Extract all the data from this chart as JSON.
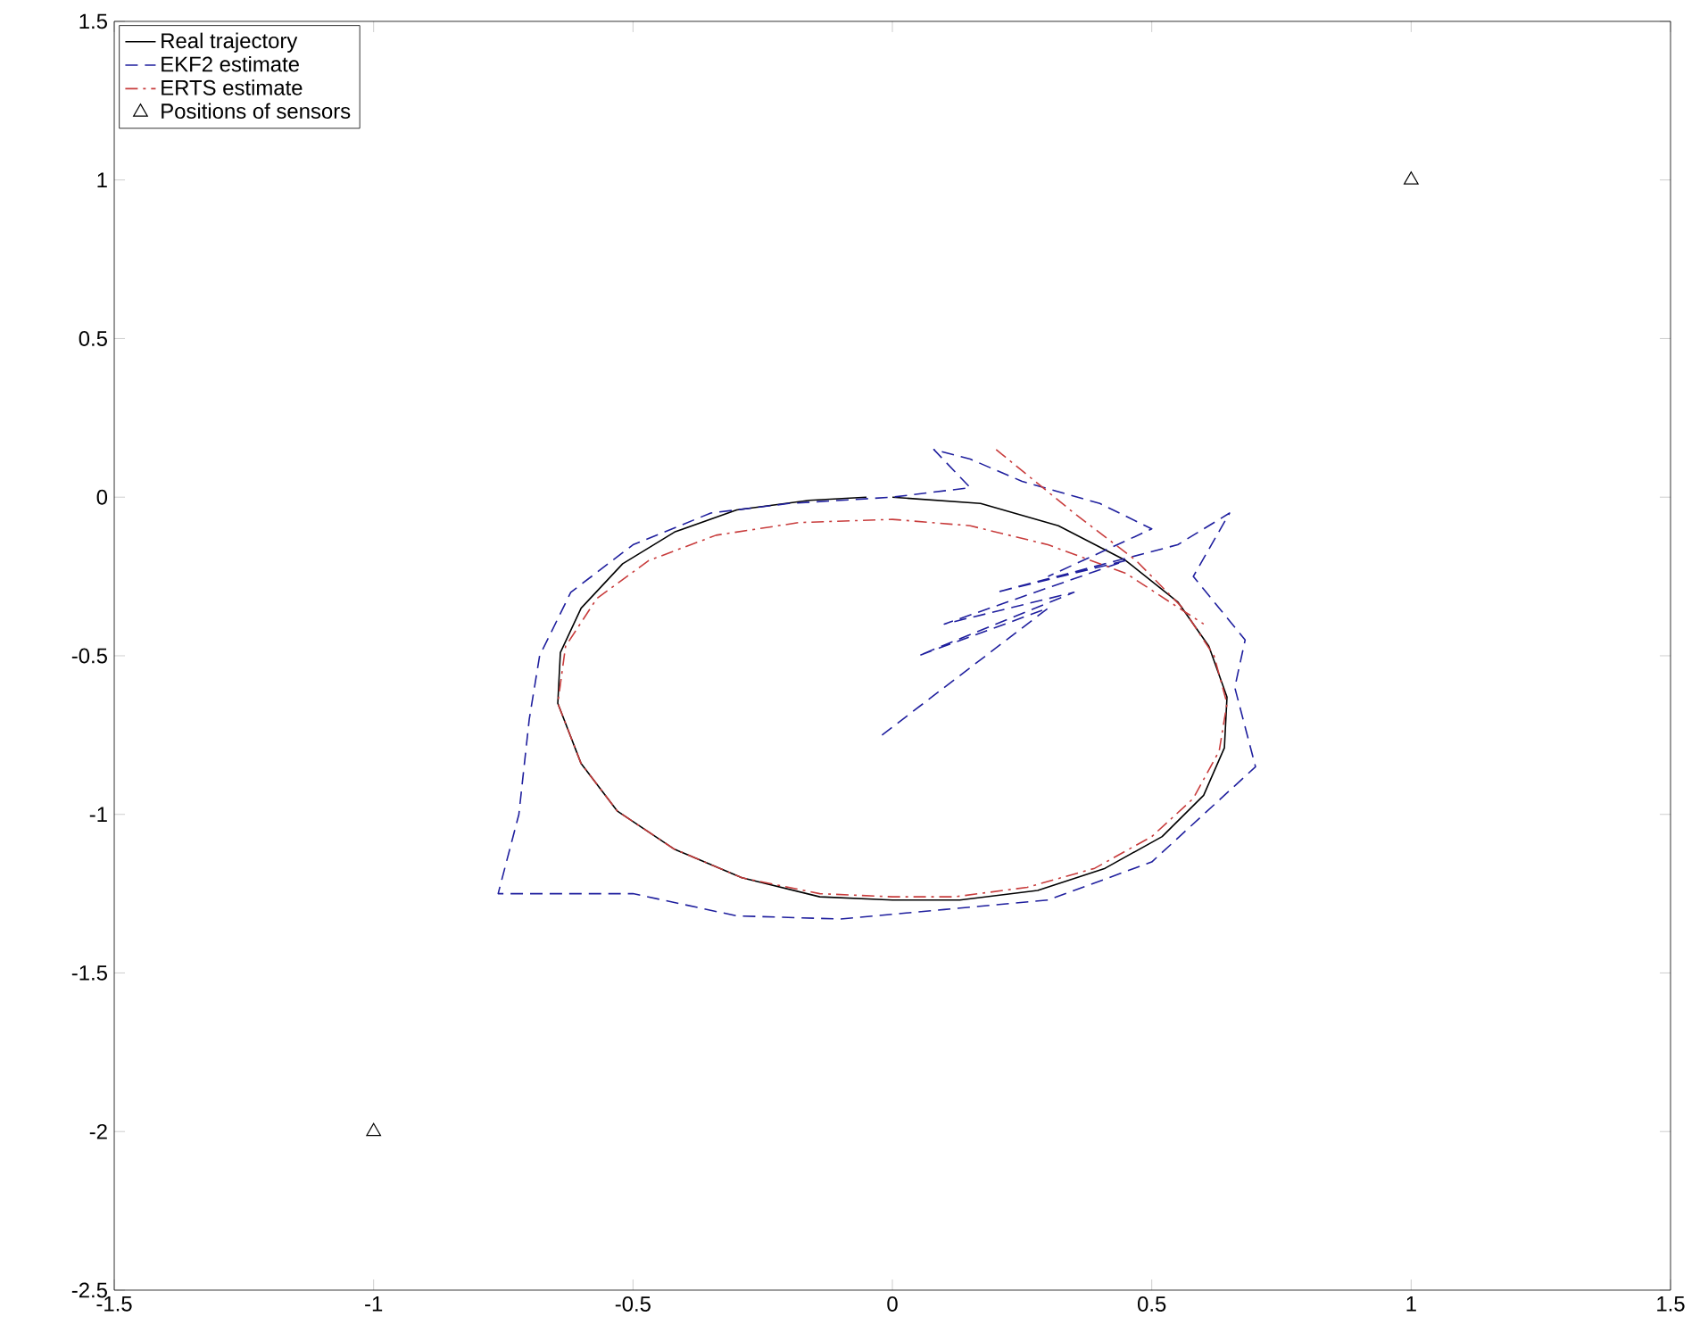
{
  "chart_data": {
    "type": "line",
    "xlim": [
      -1.5,
      1.5
    ],
    "ylim": [
      -2.5,
      1.5
    ],
    "xticks": [
      -1.5,
      -1,
      -0.5,
      0,
      0.5,
      1,
      1.5
    ],
    "yticks": [
      -2.5,
      -2,
      -1.5,
      -1,
      -0.5,
      0,
      0.5,
      1,
      1.5
    ],
    "grid": false,
    "legend": "top left",
    "series": [
      {
        "name": "Real trajectory",
        "color": "#000000",
        "line_style": "solid",
        "x": [
          0,
          0.17,
          0.32,
          0.45,
          0.55,
          0.61,
          0.645,
          0.64,
          0.6,
          0.52,
          0.41,
          0.28,
          0.13,
          0,
          -0.14,
          -0.29,
          -0.42,
          -0.53,
          -0.6,
          -0.645,
          -0.64,
          -0.6,
          -0.52,
          -0.42,
          -0.3,
          -0.16,
          -0.05
        ],
        "values": [
          0,
          -0.02,
          -0.09,
          -0.2,
          -0.33,
          -0.47,
          -0.63,
          -0.79,
          -0.94,
          -1.07,
          -1.17,
          -1.24,
          -1.27,
          -1.27,
          -1.26,
          -1.2,
          -1.11,
          -0.99,
          -0.84,
          -0.65,
          -0.49,
          -0.35,
          -0.21,
          -0.11,
          -0.04,
          -0.01,
          0
        ]
      },
      {
        "name": "EKF2 estimate",
        "color": "#1f1f9e",
        "line_style": "dashed",
        "x": [
          -0.02,
          0.3,
          0.05,
          0.35,
          0.1,
          0.45,
          0.2,
          0.55,
          0.65,
          0.58,
          0.68,
          0.66,
          0.7,
          0.6,
          0.5,
          0.3,
          0.1,
          -0.1,
          -0.3,
          -0.5,
          -0.76,
          -0.72,
          -0.7,
          -0.68,
          -0.62,
          -0.5,
          -0.35,
          -0.2,
          0,
          0.15,
          0.08,
          0.15,
          0.25,
          0.4,
          0.5,
          0.3
        ],
        "values": [
          -0.75,
          -0.35,
          -0.5,
          -0.3,
          -0.4,
          -0.2,
          -0.3,
          -0.15,
          -0.05,
          -0.25,
          -0.45,
          -0.6,
          -0.85,
          -1.0,
          -1.15,
          -1.27,
          -1.3,
          -1.33,
          -1.32,
          -1.25,
          -1.25,
          -1.0,
          -0.7,
          -0.5,
          -0.3,
          -0.15,
          -0.05,
          -0.02,
          0,
          0.03,
          0.15,
          0.12,
          0.05,
          -0.02,
          -0.1,
          -0.25
        ]
      },
      {
        "name": "ERTS estimate",
        "color": "#c83c3c",
        "line_style": "dashdot",
        "x": [
          0.2,
          0.35,
          0.47,
          0.56,
          0.62,
          0.645,
          0.63,
          0.58,
          0.5,
          0.39,
          0.26,
          0.12,
          0,
          -0.14,
          -0.29,
          -0.42,
          -0.53,
          -0.6,
          -0.645,
          -0.63,
          -0.57,
          -0.47,
          -0.34,
          -0.18,
          0,
          0.15,
          0.3,
          0.45,
          0.6
        ],
        "values": [
          0.15,
          -0.05,
          -0.2,
          -0.35,
          -0.5,
          -0.65,
          -0.8,
          -0.95,
          -1.07,
          -1.17,
          -1.23,
          -1.26,
          -1.26,
          -1.25,
          -1.2,
          -1.11,
          -0.99,
          -0.84,
          -0.65,
          -0.47,
          -0.32,
          -0.2,
          -0.12,
          -0.08,
          -0.07,
          -0.09,
          -0.15,
          -0.24,
          -0.4
        ]
      },
      {
        "name": "Positions of sensors",
        "type": "scatter",
        "marker": "triangle",
        "color": "#000000",
        "x": [
          -1,
          1
        ],
        "values": [
          -2,
          1
        ]
      }
    ]
  }
}
